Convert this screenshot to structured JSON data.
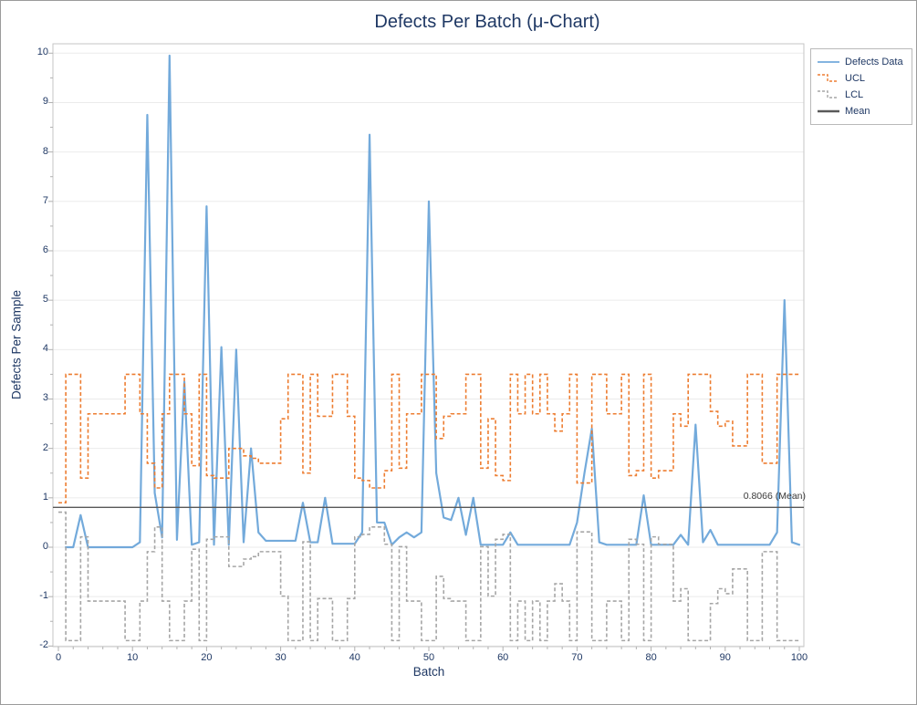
{
  "figure": {
    "window_title": "Defects Per Batch (μ-Chart)"
  },
  "chart_data": {
    "type": "line",
    "title": "Defects Per Batch (μ-Chart)",
    "xlabel": "Batch",
    "ylabel": "Defects Per Sample",
    "xlim": [
      0,
      100
    ],
    "ylim": [
      -2,
      10
    ],
    "x_ticks": [
      0,
      10,
      20,
      30,
      40,
      50,
      60,
      70,
      80,
      90,
      100
    ],
    "y_ticks": [
      -2,
      -1,
      0,
      1,
      2,
      3,
      4,
      5,
      6,
      7,
      8,
      9,
      10
    ],
    "grid": "horizontal",
    "legend_position": "top-right",
    "mean": 0.8066,
    "mean_label": "0.8066 (Mean)",
    "series": [
      {
        "name": "Defects Data",
        "type": "line",
        "color": "#5B9BD5",
        "dash": false,
        "x_start": 1,
        "values": [
          0,
          0,
          0.65,
          0,
          0,
          0,
          0,
          0,
          0,
          0,
          0.1,
          8.75,
          1.1,
          0.2,
          9.95,
          0.15,
          3.35,
          0.05,
          0.1,
          6.9,
          0.05,
          4.05,
          0.05,
          4.0,
          0.1,
          2.0,
          0.3,
          0.13,
          0.13,
          0.13,
          0.13,
          0.13,
          0.9,
          0.1,
          0.1,
          1.0,
          0.07,
          0.07,
          0.07,
          0.07,
          0.3,
          8.35,
          0.5,
          0.5,
          0.05,
          0.2,
          0.3,
          0.2,
          0.3,
          7.0,
          1.5,
          0.6,
          0.55,
          1.0,
          0.25,
          1.0,
          0.05,
          0.05,
          0.05,
          0.05,
          0.3,
          0.05,
          0.05,
          0.05,
          0.05,
          0.05,
          0.05,
          0.05,
          0.05,
          0.5,
          1.5,
          2.4,
          0.1,
          0.05,
          0.05,
          0.05,
          0.05,
          0.05,
          1.05,
          0.05,
          0.05,
          0.05,
          0.05,
          0.25,
          0.05,
          2.48,
          0.1,
          0.35,
          0.05,
          0.05,
          0.05,
          0.05,
          0.05,
          0.05,
          0.05,
          0.05,
          0.3,
          5.0,
          0.1,
          0.05
        ]
      },
      {
        "name": "UCL",
        "type": "step",
        "color": "#ED7D31",
        "dash": true,
        "x_start": 0,
        "values": [
          0.9,
          3.5,
          3.5,
          1.4,
          2.7,
          2.7,
          2.7,
          2.7,
          2.7,
          3.5,
          3.5,
          2.7,
          1.7,
          1.2,
          2.7,
          3.5,
          3.5,
          2.7,
          1.65,
          3.5,
          1.45,
          1.4,
          1.4,
          2.0,
          2.0,
          1.85,
          1.8,
          1.7,
          1.7,
          1.7,
          2.6,
          3.5,
          3.5,
          1.5,
          3.5,
          2.65,
          2.65,
          3.5,
          3.5,
          2.65,
          1.4,
          1.35,
          1.2,
          1.2,
          1.55,
          3.5,
          1.6,
          2.7,
          2.7,
          3.5,
          3.5,
          2.2,
          2.65,
          2.7,
          2.7,
          3.5,
          3.5,
          1.6,
          2.6,
          1.45,
          1.35,
          3.5,
          2.7,
          3.5,
          2.7,
          3.5,
          2.7,
          2.35,
          2.7,
          3.5,
          1.3,
          1.3,
          3.5,
          3.5,
          2.7,
          2.7,
          3.5,
          1.45,
          1.55,
          3.5,
          1.4,
          1.55,
          1.55,
          2.7,
          2.45,
          3.5,
          3.5,
          3.5,
          2.75,
          2.45,
          2.55,
          2.05,
          2.05,
          3.5,
          3.5,
          1.7,
          1.7,
          3.5,
          3.5,
          3.5,
          3.5
        ]
      },
      {
        "name": "LCL",
        "type": "step",
        "color": "#A6A6A6",
        "dash": true,
        "x_start": 0,
        "values": [
          0.71,
          -1.89,
          -1.89,
          0.21,
          -1.09,
          -1.09,
          -1.09,
          -1.09,
          -1.09,
          -1.89,
          -1.89,
          -1.09,
          -0.09,
          0.41,
          -1.09,
          -1.89,
          -1.89,
          -1.09,
          -0.04,
          -1.89,
          0.16,
          0.21,
          0.21,
          -0.39,
          -0.39,
          -0.24,
          -0.19,
          -0.09,
          -0.09,
          -0.09,
          -0.99,
          -1.89,
          -1.89,
          0.11,
          -1.89,
          -1.04,
          -1.04,
          -1.89,
          -1.89,
          -1.04,
          0.21,
          0.26,
          0.41,
          0.41,
          0.06,
          -1.89,
          0.01,
          -1.09,
          -1.09,
          -1.89,
          -1.89,
          -0.59,
          -1.04,
          -1.09,
          -1.09,
          -1.89,
          -1.89,
          0.01,
          -0.99,
          0.16,
          0.26,
          -1.89,
          -1.09,
          -1.89,
          -1.09,
          -1.89,
          -1.09,
          -0.74,
          -1.09,
          -1.89,
          0.31,
          0.31,
          -1.89,
          -1.89,
          -1.09,
          -1.09,
          -1.89,
          0.16,
          0.06,
          -1.89,
          0.21,
          0.06,
          0.06,
          -1.09,
          -0.84,
          -1.89,
          -1.89,
          -1.89,
          -1.14,
          -0.84,
          -0.94,
          -0.44,
          -0.44,
          -1.89,
          -1.89,
          -0.09,
          -0.09,
          -1.89,
          -1.89,
          -1.89,
          -1.89
        ]
      },
      {
        "name": "Mean",
        "type": "hline",
        "color": "#595959",
        "dash": false,
        "value": 0.8066
      }
    ]
  },
  "colors": {
    "text": "#1f3864",
    "plot_border": "#c6c6c6",
    "gridline": "#ebebeb",
    "tick": "#b0b0b0",
    "background": "#ffffff"
  }
}
